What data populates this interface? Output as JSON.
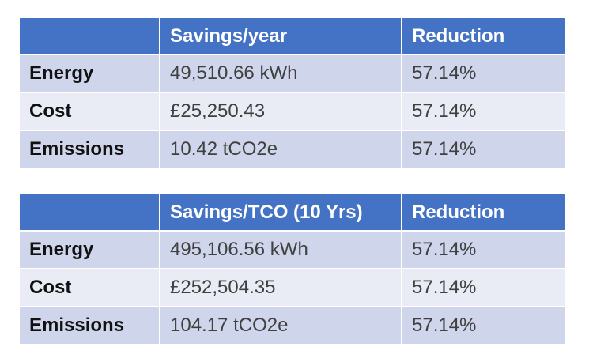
{
  "tables": [
    {
      "header": {
        "corner": "",
        "col2": "Savings/year",
        "col3": "Reduction"
      },
      "rows": [
        {
          "label": "Energy",
          "savings": "49,510.66 kWh",
          "reduction": "57.14%"
        },
        {
          "label": "Cost",
          "savings": "£25,250.43",
          "reduction": "57.14%"
        },
        {
          "label": "Emissions",
          "savings": "10.42 tCO2e",
          "reduction": "57.14%"
        }
      ]
    },
    {
      "header": {
        "corner": "",
        "col2": "Savings/TCO (10 Yrs)",
        "col3": "Reduction"
      },
      "rows": [
        {
          "label": "Energy",
          "savings": "495,106.56 kWh",
          "reduction": "57.14%"
        },
        {
          "label": "Cost",
          "savings": "£252,504.35",
          "reduction": "57.14%"
        },
        {
          "label": "Emissions",
          "savings": "104.17 tCO2e",
          "reduction": "57.14%"
        }
      ]
    }
  ],
  "colors": {
    "header_bg": "#4472c4",
    "header_text": "#ffffff",
    "row_odd_bg": "#cfd5ea",
    "row_even_bg": "#e9ebf5"
  }
}
